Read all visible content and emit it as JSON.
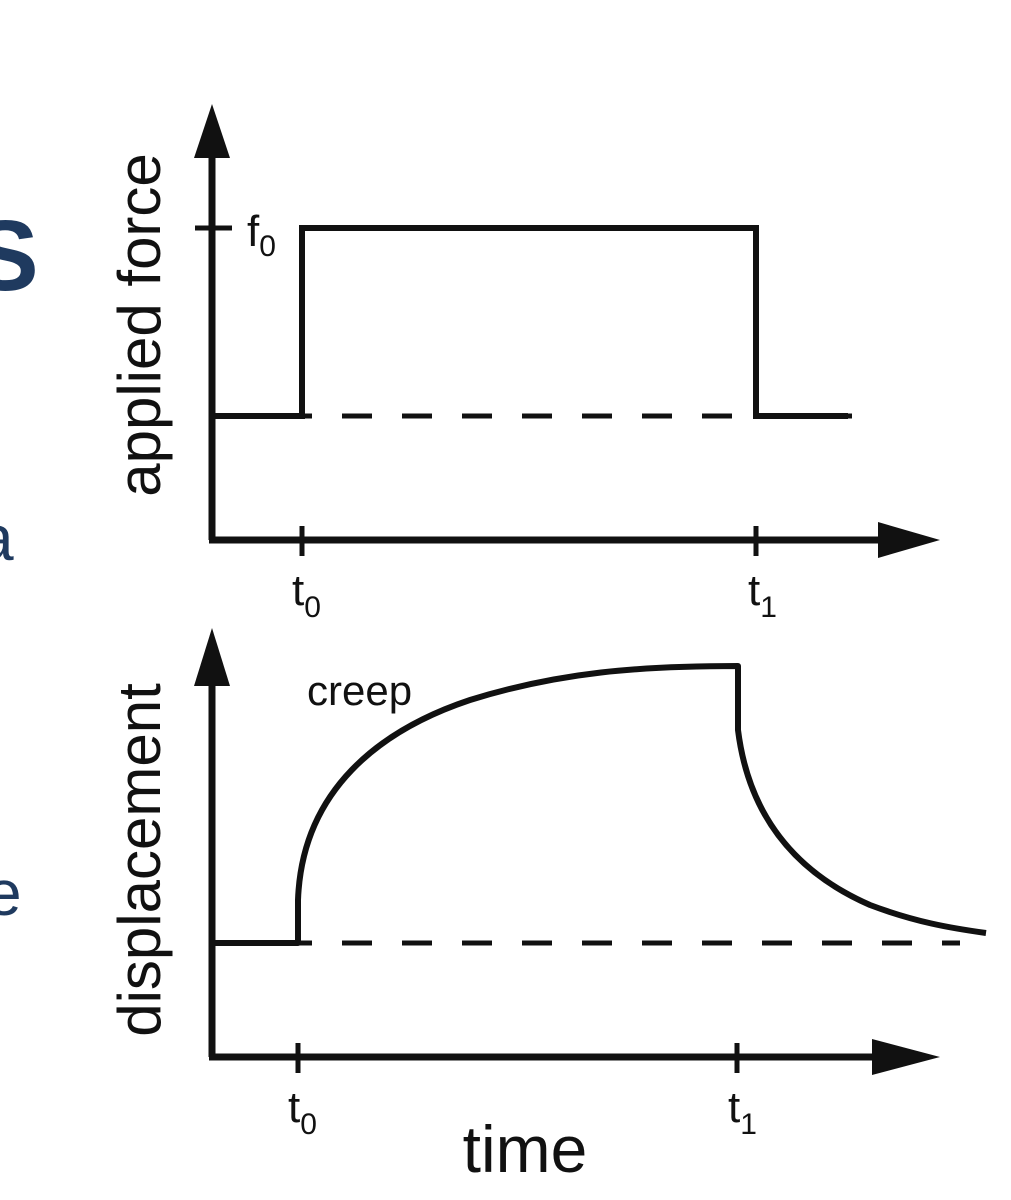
{
  "diagram": {
    "top_panel": {
      "ylabel": "applied force",
      "level_label": {
        "main": "f",
        "sub": "0"
      },
      "ticks": [
        {
          "main": "t",
          "sub": "0"
        },
        {
          "main": "t",
          "sub": "1"
        }
      ]
    },
    "bottom_panel": {
      "ylabel": "displacement",
      "curve_label": "creep",
      "ticks": [
        {
          "main": "t",
          "sub": "0"
        },
        {
          "main": "t",
          "sub": "1"
        }
      ],
      "xlabel": "time"
    },
    "edge_fragments": [
      "S",
      "a",
      "e"
    ]
  }
}
